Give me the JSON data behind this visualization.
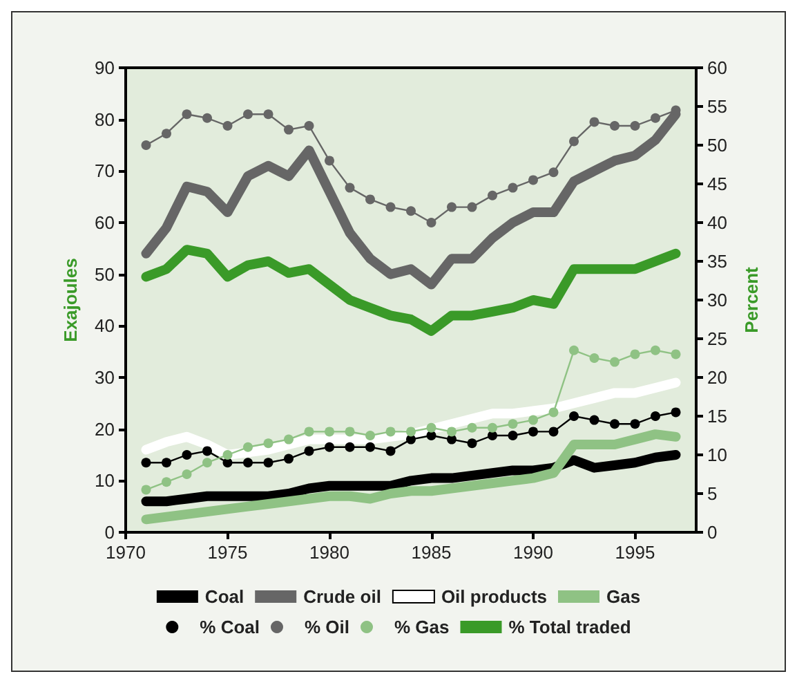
{
  "chart_data": {
    "type": "line",
    "ylabel": "Exajoules",
    "y2label": "Percent",
    "x": [
      1971,
      1972,
      1973,
      1974,
      1975,
      1976,
      1977,
      1978,
      1979,
      1980,
      1981,
      1982,
      1983,
      1984,
      1985,
      1986,
      1987,
      1988,
      1989,
      1990,
      1991,
      1992,
      1993,
      1994,
      1995,
      1996,
      1997
    ],
    "xlim": [
      1970,
      1998
    ],
    "xticks": [
      1970,
      1975,
      1980,
      1985,
      1990,
      1995
    ],
    "ylim": [
      0,
      90
    ],
    "yticks": [
      0,
      10,
      20,
      30,
      40,
      50,
      60,
      70,
      80,
      90
    ],
    "y2lim": [
      0,
      60
    ],
    "y2ticks": [
      0,
      5,
      10,
      15,
      20,
      25,
      30,
      35,
      40,
      45,
      50,
      55,
      60
    ],
    "grid": false,
    "legend": "bottom",
    "marker": "none",
    "series": [
      {
        "name": "Coal",
        "color": "#000000",
        "values": [
          6,
          6,
          6.5,
          7,
          7,
          7,
          7,
          7.5,
          8.5,
          9,
          9,
          9,
          9,
          10,
          10.5,
          10.5,
          11,
          11.5,
          12,
          12,
          12.5,
          14,
          12.5,
          13,
          13.5,
          14.5,
          15
        ]
      },
      {
        "name": "Crude oil",
        "color": "#666666",
        "values": [
          54,
          59,
          67,
          66,
          62,
          69,
          71,
          69,
          74,
          66,
          58,
          53,
          50,
          51,
          48,
          53,
          53,
          57,
          60,
          62,
          62,
          68,
          70,
          72,
          73,
          76,
          81
        ]
      },
      {
        "name": "Oil products",
        "color": "#ffffff",
        "values": [
          16,
          17.5,
          18.5,
          17,
          15,
          15.5,
          16,
          17,
          18,
          18,
          18,
          18,
          18.5,
          19,
          20,
          21,
          22,
          23,
          23,
          23.5,
          24,
          25,
          26,
          27,
          27,
          28,
          29
        ]
      },
      {
        "name": "Gas",
        "color": "#8fc284",
        "values": [
          2.5,
          3,
          3.5,
          4,
          4.5,
          5,
          5.5,
          6,
          6.5,
          7,
          7,
          6.5,
          7.5,
          8,
          8,
          8.5,
          9,
          9.5,
          10,
          10.5,
          11.5,
          17,
          17,
          17,
          18,
          19,
          18.5
        ]
      },
      {
        "name": "% Coal",
        "color": "#000000",
        "axis": "y2",
        "marker": "circle",
        "values": [
          9,
          9,
          10,
          10.5,
          9,
          9,
          9,
          9.5,
          10.5,
          11,
          11,
          11,
          10.5,
          12,
          12.5,
          12,
          11.5,
          12.5,
          12.5,
          13,
          13,
          15,
          14.5,
          14,
          14,
          15,
          15.5
        ]
      },
      {
        "name": "% Oil",
        "color": "#666666",
        "axis": "y2",
        "marker": "circle",
        "values": [
          50,
          51.5,
          54,
          53.5,
          52.5,
          54,
          54,
          52,
          52.5,
          48,
          44.5,
          43,
          42,
          41.5,
          40,
          42,
          42,
          43.5,
          44.5,
          45.5,
          46.5,
          50.5,
          53,
          52.5,
          52.5,
          53.5,
          54.5
        ]
      },
      {
        "name": "% Gas",
        "color": "#8fc284",
        "axis": "y2",
        "marker": "circle",
        "values": [
          5.5,
          6.5,
          7.5,
          9,
          10,
          11,
          11.5,
          12,
          13,
          13,
          13,
          12.5,
          13,
          13,
          13.5,
          13,
          13.5,
          13.5,
          14,
          14.5,
          15.5,
          23.5,
          22.5,
          22,
          23,
          23.5,
          23
        ]
      },
      {
        "name": "% Total traded",
        "color": "#3a9a28",
        "axis": "y2",
        "values": [
          33,
          34,
          36.5,
          36,
          33,
          34.5,
          35,
          33.5,
          34,
          32,
          30,
          29,
          28,
          27.5,
          26,
          28,
          28,
          28.5,
          29,
          30,
          29.5,
          34,
          34,
          34,
          34,
          35,
          36
        ]
      }
    ]
  }
}
